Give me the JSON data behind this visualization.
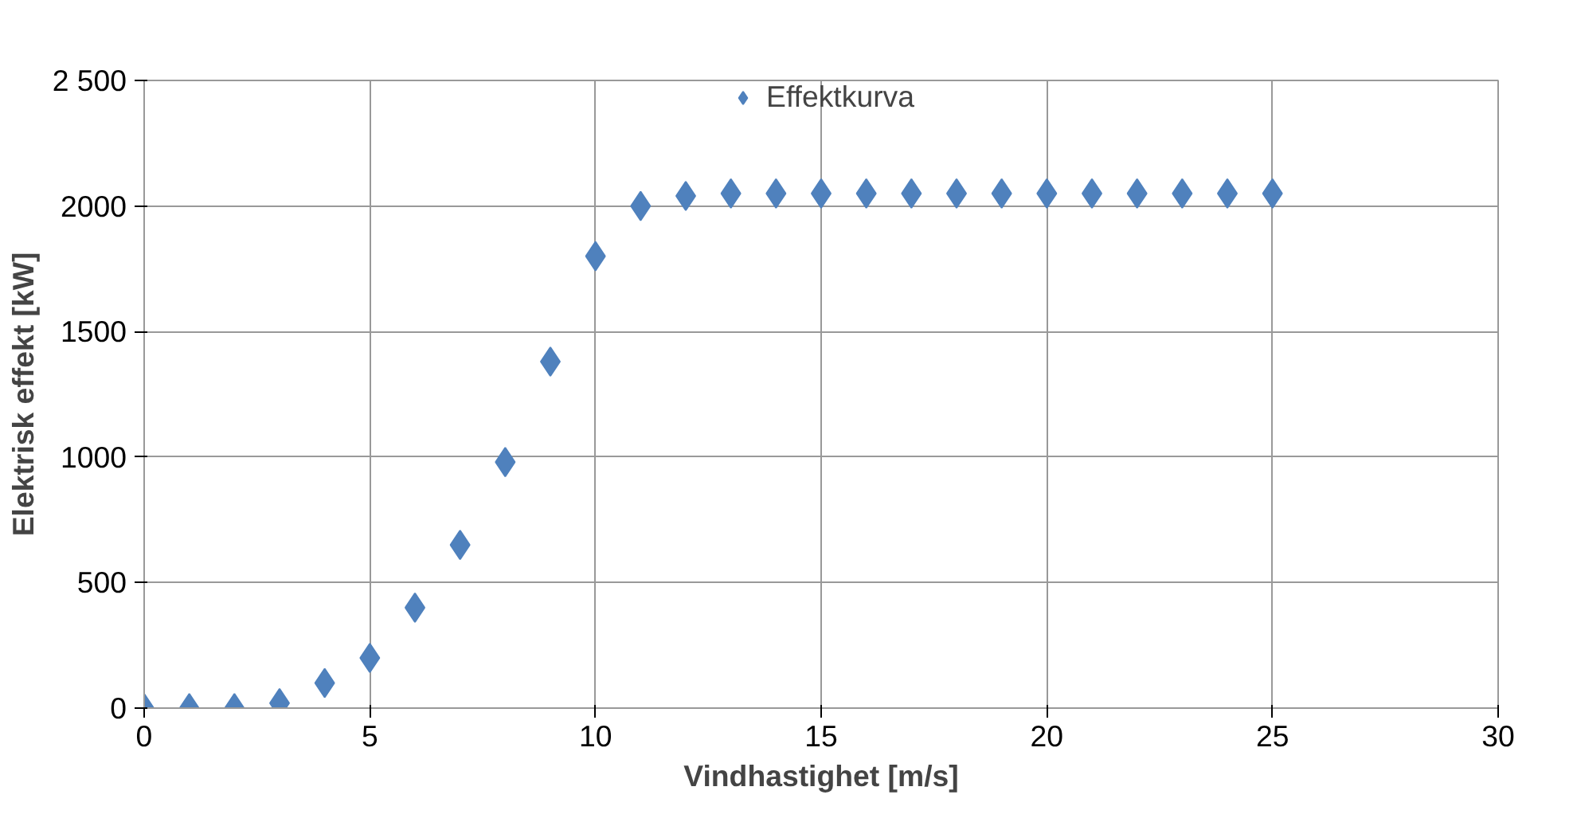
{
  "chart_data": {
    "type": "scatter",
    "xlabel": "Vindhastighet [m/s]",
    "ylabel": "Elektrisk effekt [kW]",
    "x": [
      0,
      1,
      2,
      3,
      4,
      5,
      6,
      7,
      8,
      9,
      10,
      11,
      12,
      13,
      14,
      15,
      16,
      17,
      18,
      19,
      20,
      21,
      22,
      23,
      24,
      25
    ],
    "series": [
      {
        "name": "Effektkurva",
        "color": "#4f81bd",
        "values": [
          0,
          0,
          0,
          20,
          100,
          200,
          400,
          650,
          980,
          1380,
          1800,
          2000,
          2040,
          2050,
          2050,
          2050,
          2050,
          2050,
          2050,
          2050,
          2050,
          2050,
          2050,
          2050,
          2050,
          2050
        ]
      }
    ],
    "xlim": [
      0,
      30
    ],
    "xticks": [
      0,
      5,
      10,
      15,
      20,
      25,
      30
    ],
    "ylim": [
      0,
      2500
    ],
    "yticks": [
      0,
      500,
      1000,
      1500,
      2000,
      {
        "value": 2500,
        "label": "2 500"
      }
    ],
    "grid": true,
    "legend": "top",
    "marker": "diamond"
  }
}
